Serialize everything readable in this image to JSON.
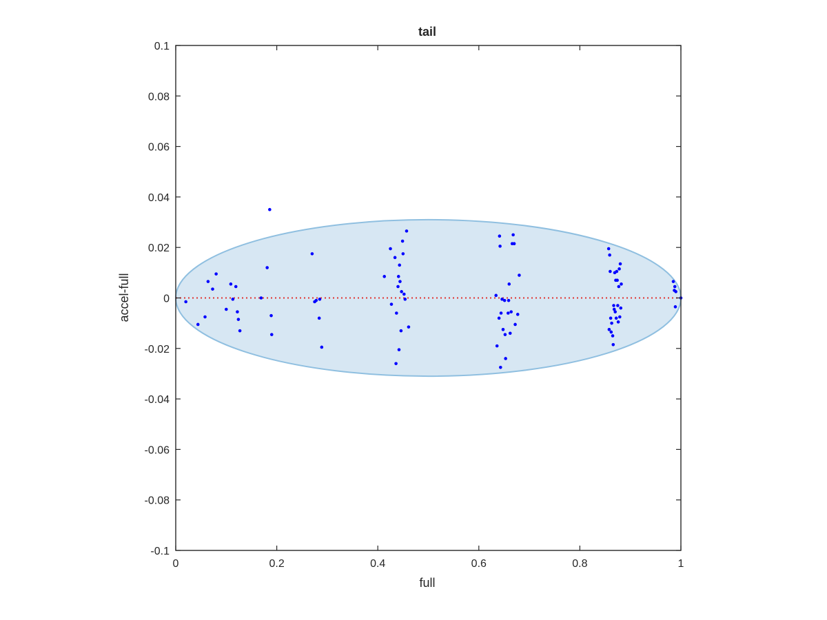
{
  "chart_data": {
    "type": "scatter",
    "title": "tail",
    "xlabel": "full",
    "ylabel": "accel-full",
    "xlim": [
      0,
      1
    ],
    "ylim": [
      -0.1,
      0.1
    ],
    "xticks": [
      0,
      0.2,
      0.4,
      0.6,
      0.8,
      1
    ],
    "xtick_labels": [
      "0",
      "0.2",
      "0.4",
      "0.6",
      "0.8",
      "1"
    ],
    "yticks": [
      -0.1,
      -0.08,
      -0.06,
      -0.04,
      -0.02,
      0,
      0.02,
      0.04,
      0.06,
      0.08,
      0.1
    ],
    "ytick_labels": [
      "-0.1",
      "-0.08",
      "-0.06",
      "-0.04",
      "-0.02",
      "0",
      "0.02",
      "0.04",
      "0.06",
      "0.08",
      "0.1"
    ],
    "grid": false,
    "ellipse": {
      "cx": 0.5,
      "cy": 0,
      "rx": 0.5,
      "ry": 0.031,
      "fill": "#d7e7f3",
      "stroke": "#8fbfe0"
    },
    "reference_line": {
      "y": 0,
      "color": "#e0322e",
      "style": "dotted"
    },
    "marker_color": "#0000ff",
    "points": [
      {
        "x": 0.02,
        "y": -0.0015
      },
      {
        "x": 0.044,
        "y": -0.0105
      },
      {
        "x": 0.058,
        "y": -0.0075
      },
      {
        "x": 0.064,
        "y": 0.0065
      },
      {
        "x": 0.073,
        "y": 0.0035
      },
      {
        "x": 0.08,
        "y": 0.0095
      },
      {
        "x": 0.1,
        "y": -0.0045
      },
      {
        "x": 0.109,
        "y": 0.0055
      },
      {
        "x": 0.113,
        "y": -0.0005
      },
      {
        "x": 0.119,
        "y": 0.0045
      },
      {
        "x": 0.122,
        "y": -0.0055
      },
      {
        "x": 0.124,
        "y": -0.0085
      },
      {
        "x": 0.127,
        "y": -0.013
      },
      {
        "x": 0.169,
        "y": 0.0
      },
      {
        "x": 0.181,
        "y": 0.012
      },
      {
        "x": 0.186,
        "y": 0.035
      },
      {
        "x": 0.189,
        "y": -0.007
      },
      {
        "x": 0.19,
        "y": -0.0145
      },
      {
        "x": 0.27,
        "y": 0.0175
      },
      {
        "x": 0.275,
        "y": -0.0015
      },
      {
        "x": 0.278,
        "y": -0.001
      },
      {
        "x": 0.284,
        "y": -0.008
      },
      {
        "x": 0.285,
        "y": -0.0005
      },
      {
        "x": 0.289,
        "y": -0.0195
      },
      {
        "x": 0.413,
        "y": 0.0085
      },
      {
        "x": 0.425,
        "y": 0.0195
      },
      {
        "x": 0.427,
        "y": -0.0025
      },
      {
        "x": 0.434,
        "y": 0.016
      },
      {
        "x": 0.436,
        "y": -0.026
      },
      {
        "x": 0.437,
        "y": -0.006
      },
      {
        "x": 0.44,
        "y": 0.0045
      },
      {
        "x": 0.441,
        "y": 0.0085
      },
      {
        "x": 0.442,
        "y": -0.0205
      },
      {
        "x": 0.443,
        "y": 0.013
      },
      {
        "x": 0.444,
        "y": 0.0065
      },
      {
        "x": 0.446,
        "y": -0.013
      },
      {
        "x": 0.447,
        "y": 0.0025
      },
      {
        "x": 0.449,
        "y": 0.0225
      },
      {
        "x": 0.45,
        "y": 0.0175
      },
      {
        "x": 0.452,
        "y": 0.0015
      },
      {
        "x": 0.454,
        "y": -0.0005
      },
      {
        "x": 0.457,
        "y": 0.0265
      },
      {
        "x": 0.461,
        "y": -0.0115
      },
      {
        "x": 0.634,
        "y": 0.001
      },
      {
        "x": 0.636,
        "y": -0.019
      },
      {
        "x": 0.64,
        "y": -0.008
      },
      {
        "x": 0.641,
        "y": 0.0245
      },
      {
        "x": 0.642,
        "y": 0.0205
      },
      {
        "x": 0.643,
        "y": -0.0275
      },
      {
        "x": 0.644,
        "y": -0.006
      },
      {
        "x": 0.646,
        "y": -0.0005
      },
      {
        "x": 0.648,
        "y": -0.0125
      },
      {
        "x": 0.651,
        "y": -0.001
      },
      {
        "x": 0.652,
        "y": -0.0145
      },
      {
        "x": 0.653,
        "y": -0.024
      },
      {
        "x": 0.658,
        "y": -0.006
      },
      {
        "x": 0.659,
        "y": -0.001
      },
      {
        "x": 0.66,
        "y": 0.0055
      },
      {
        "x": 0.662,
        "y": -0.014
      },
      {
        "x": 0.664,
        "y": -0.0055
      },
      {
        "x": 0.666,
        "y": 0.0215
      },
      {
        "x": 0.668,
        "y": 0.025
      },
      {
        "x": 0.67,
        "y": 0.0215
      },
      {
        "x": 0.672,
        "y": -0.0105
      },
      {
        "x": 0.677,
        "y": -0.0065
      },
      {
        "x": 0.68,
        "y": 0.009
      },
      {
        "x": 0.857,
        "y": 0.0195
      },
      {
        "x": 0.858,
        "y": -0.0125
      },
      {
        "x": 0.859,
        "y": 0.017
      },
      {
        "x": 0.86,
        "y": 0.0105
      },
      {
        "x": 0.861,
        "y": -0.008
      },
      {
        "x": 0.862,
        "y": -0.0135
      },
      {
        "x": 0.863,
        "y": -0.01
      },
      {
        "x": 0.865,
        "y": -0.015
      },
      {
        "x": 0.866,
        "y": -0.0185
      },
      {
        "x": 0.867,
        "y": -0.003
      },
      {
        "x": 0.868,
        "y": -0.0045
      },
      {
        "x": 0.869,
        "y": 0.01
      },
      {
        "x": 0.87,
        "y": -0.0055
      },
      {
        "x": 0.871,
        "y": 0.007
      },
      {
        "x": 0.872,
        "y": -0.008
      },
      {
        "x": 0.873,
        "y": 0.0105
      },
      {
        "x": 0.874,
        "y": 0.007
      },
      {
        "x": 0.875,
        "y": -0.003
      },
      {
        "x": 0.876,
        "y": -0.0095
      },
      {
        "x": 0.877,
        "y": 0.0045
      },
      {
        "x": 0.878,
        "y": 0.0115
      },
      {
        "x": 0.879,
        "y": -0.0075
      },
      {
        "x": 0.88,
        "y": 0.0135
      },
      {
        "x": 0.881,
        "y": -0.004
      },
      {
        "x": 0.882,
        "y": 0.0055
      },
      {
        "x": 0.985,
        "y": 0.0065
      },
      {
        "x": 0.987,
        "y": 0.003
      },
      {
        "x": 0.988,
        "y": 0.0045
      },
      {
        "x": 0.989,
        "y": -0.0035
      },
      {
        "x": 0.99,
        "y": 0.0025
      },
      {
        "x": 1.0,
        "y": 0.0
      }
    ]
  }
}
